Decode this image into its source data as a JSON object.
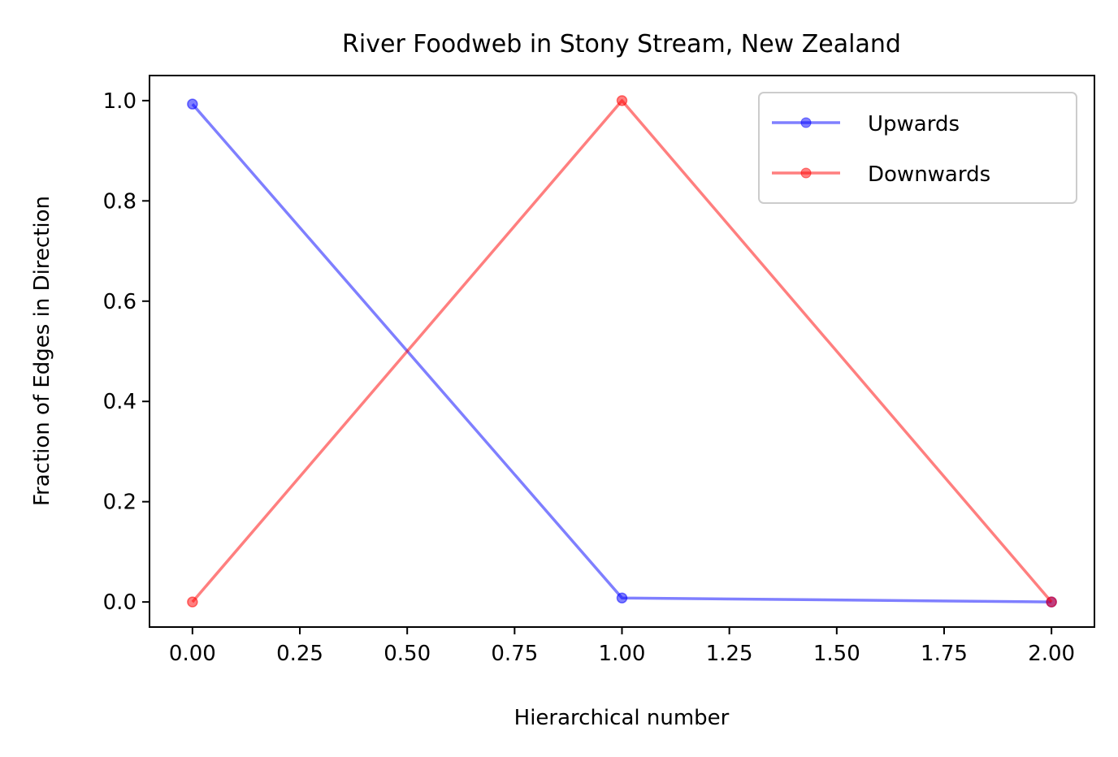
{
  "chart_data": {
    "type": "line",
    "title": "River Foodweb in Stony Stream, New Zealand",
    "xlabel": "Hierarchical number",
    "ylabel": "Fraction of Edges in Direction",
    "xlim": [
      -0.1,
      2.1
    ],
    "ylim": [
      -0.05,
      1.05
    ],
    "x_ticks": [
      "0.00",
      "0.25",
      "0.50",
      "0.75",
      "1.00",
      "1.25",
      "1.50",
      "1.75",
      "2.00"
    ],
    "y_ticks": [
      "0.0",
      "0.2",
      "0.4",
      "0.6",
      "0.8",
      "1.0"
    ],
    "grid": false,
    "legend_position": "top-right",
    "series": [
      {
        "name": "Upwards",
        "color": "#0000ff",
        "x": [
          0,
          1,
          2
        ],
        "y": [
          0.993,
          0.008,
          0.0
        ]
      },
      {
        "name": "Downwards",
        "color": "#ff0000",
        "x": [
          0,
          1,
          2
        ],
        "y": [
          0.0,
          1.0,
          0.0
        ]
      }
    ]
  }
}
